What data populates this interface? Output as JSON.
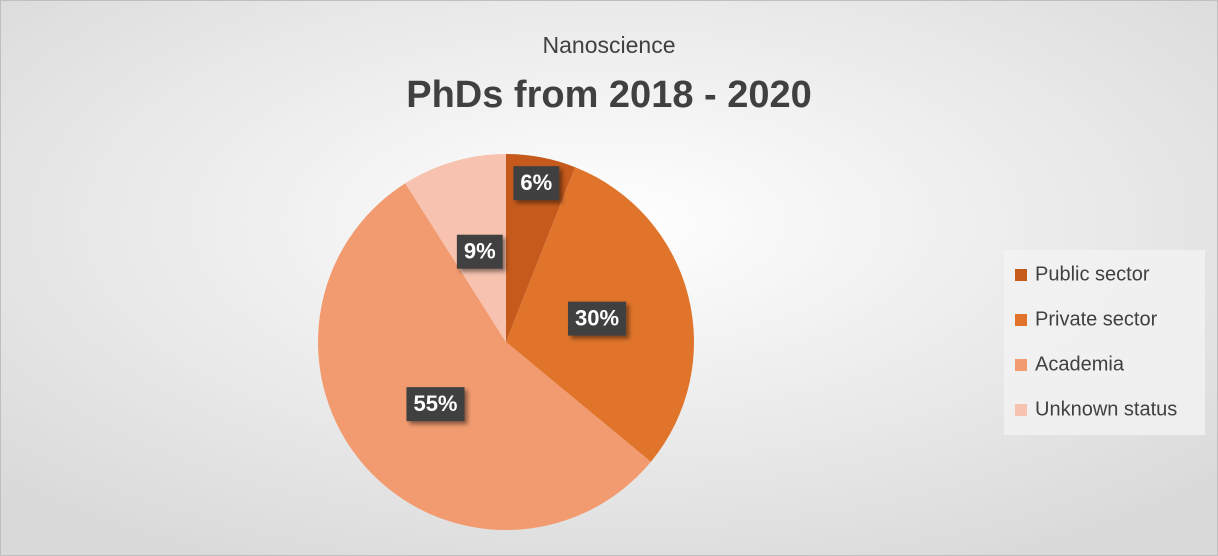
{
  "chart_data": {
    "type": "pie",
    "subtitle": "Nanoscience",
    "title": "PhDs from 2018 - 2020",
    "categories": [
      "Public sector",
      "Private sector",
      "Academia",
      "Unknown status"
    ],
    "values": [
      6,
      30,
      55,
      9
    ],
    "value_labels": [
      "6%",
      "30%",
      "55%",
      "9%"
    ],
    "colors": [
      "#c55a1c",
      "#e0742b",
      "#f29b70",
      "#f7c3b0"
    ],
    "legend": "right"
  }
}
